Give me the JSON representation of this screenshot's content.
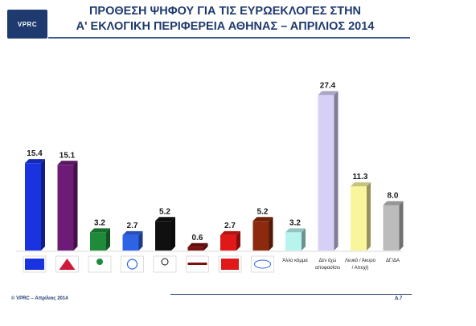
{
  "header": {
    "logo_text": "VPRC",
    "title_line1": "ΠΡΟΘΕΣΗ ΨΗΦΟΥ ΓΙΑ ΤΙΣ ΕΥΡΩΕΚΛΟΓΕΣ ΣΤΗΝ",
    "title_line2": "Α' ΕΚΛΟΓΙΚΗ ΠΕΡΙΦΕΡΕΙΑ ΑΘΗΝΑΣ – ΑΠΡΙΛΙΟΣ 2014"
  },
  "footer": {
    "copyright": "© VPRC – Απρίλιος 2014",
    "page_number": "Δ.7"
  },
  "chart_data": {
    "type": "bar",
    "ylim": [
      0,
      30
    ],
    "categories": [
      {
        "key": "nd",
        "label": "ΝΔ",
        "value": 15.4,
        "color": "#1a33e0",
        "logo": true
      },
      {
        "key": "syriza",
        "label": "ΣΥΡΙΖΑ",
        "value": 15.1,
        "color": "#6e1b78",
        "logo": true
      },
      {
        "key": "elia",
        "label": "ελιά",
        "value": 3.2,
        "color": "#1e8a3a",
        "logo": true
      },
      {
        "key": "potami",
        "label": "Ποτάμι",
        "value": 2.7,
        "color": "#2f63e6",
        "logo": true
      },
      {
        "key": "xa",
        "label": "ΧΡΥΣΗ ΑΥΓΗ",
        "value": 5.2,
        "color": "#101010",
        "logo": true
      },
      {
        "key": "dimar",
        "label": "ΔΗΜΟΚΡΑΤΙΚΗ ΑΡΙΣΤΕΡΑ",
        "value": 0.6,
        "color": "#7a1010",
        "logo": true
      },
      {
        "key": "kke",
        "label": "KKE",
        "value": 2.7,
        "color": "#e01818",
        "logo": true
      },
      {
        "key": "anel",
        "label": "ΑΝΕΛ",
        "value": 5.2,
        "color": "#8b2a0e",
        "logo": true
      },
      {
        "key": "other",
        "label": "Άλλο κόμμα",
        "value": 3.2,
        "color": "#b7f4ee",
        "logo": false
      },
      {
        "key": "undecided",
        "label": "Δεν έχω αποφασίσει",
        "value": 27.4,
        "color": "#d6d0f6",
        "logo": false
      },
      {
        "key": "blank",
        "label": "Λευκό / Άκυρο / Αποχή",
        "value": 11.3,
        "color": "#f8f59c",
        "logo": false
      },
      {
        "key": "na",
        "label": "ΔΓ/ΔΑ",
        "value": 8.0,
        "color": "#bcbcbc",
        "logo": false
      }
    ],
    "grid": false,
    "legend": "none"
  }
}
